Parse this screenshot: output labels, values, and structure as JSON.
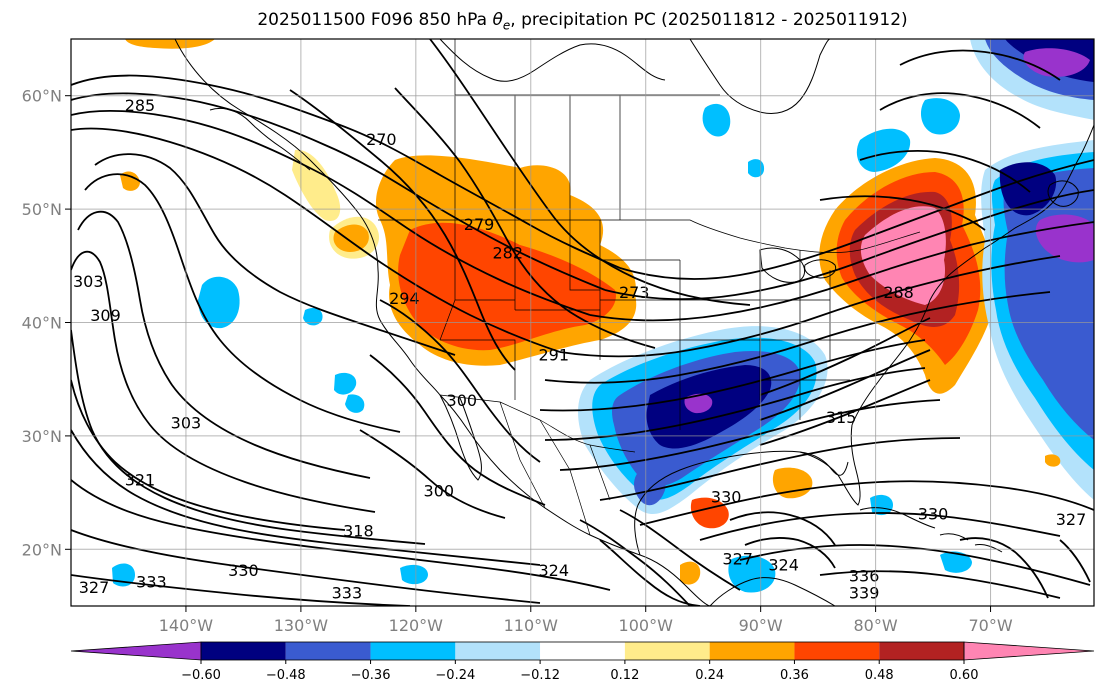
{
  "title": {
    "prefix": "2025011500 F096 850 hPa ",
    "symbol": "θ",
    "symbol_sub": "e",
    "suffix": ", precipitation PC (2025011812 - 2025011912)"
  },
  "map": {
    "projection": "PlateCarree",
    "extent": {
      "lon_min": -150,
      "lon_max": -61,
      "lat_min": 15,
      "lat_max": 65
    },
    "lat_ticks": [
      {
        "value": 20,
        "label": "20°N"
      },
      {
        "value": 30,
        "label": "30°N"
      },
      {
        "value": 40,
        "label": "40°N"
      },
      {
        "value": 50,
        "label": "50°N"
      },
      {
        "value": 60,
        "label": "60°N"
      }
    ],
    "lon_ticks": [
      {
        "value": -140,
        "label": "140°W"
      },
      {
        "value": -130,
        "label": "130°W"
      },
      {
        "value": -120,
        "label": "120°W"
      },
      {
        "value": -110,
        "label": "110°W"
      },
      {
        "value": -100,
        "label": "100°W"
      },
      {
        "value": -90,
        "label": "90°W"
      },
      {
        "value": -80,
        "label": "80°W"
      },
      {
        "value": -70,
        "label": "70°W"
      }
    ],
    "grid": true,
    "contour_labels": [
      {
        "text": "285",
        "lon": -144,
        "lat": 59
      },
      {
        "text": "270",
        "lon": -123,
        "lat": 56
      },
      {
        "text": "279",
        "lon": -114.5,
        "lat": 48.5
      },
      {
        "text": "282",
        "lon": -112,
        "lat": 46
      },
      {
        "text": "294",
        "lon": -121,
        "lat": 42
      },
      {
        "text": "273",
        "lon": -101,
        "lat": 42.5
      },
      {
        "text": "291",
        "lon": -108,
        "lat": 37
      },
      {
        "text": "300",
        "lon": -116,
        "lat": 33
      },
      {
        "text": "303",
        "lon": -140,
        "lat": 31
      },
      {
        "text": "303",
        "lon": -148.5,
        "lat": 43.5
      },
      {
        "text": "309",
        "lon": -147,
        "lat": 40.5
      },
      {
        "text": "321",
        "lon": -144,
        "lat": 26
      },
      {
        "text": "300",
        "lon": -118,
        "lat": 25
      },
      {
        "text": "318",
        "lon": -125,
        "lat": 21.5
      },
      {
        "text": "324",
        "lon": -108,
        "lat": 18
      },
      {
        "text": "330",
        "lon": -135,
        "lat": 18
      },
      {
        "text": "333",
        "lon": -143,
        "lat": 17
      },
      {
        "text": "333",
        "lon": -126,
        "lat": 16
      },
      {
        "text": "327",
        "lon": -148,
        "lat": 16.5
      },
      {
        "text": "330",
        "lon": -93,
        "lat": 24.5
      },
      {
        "text": "330",
        "lon": -75,
        "lat": 23
      },
      {
        "text": "327",
        "lon": -63,
        "lat": 22.5
      },
      {
        "text": "336",
        "lon": -81,
        "lat": 17.5
      },
      {
        "text": "339",
        "lon": -81,
        "lat": 16
      },
      {
        "text": "324",
        "lon": -88,
        "lat": 18.5
      },
      {
        "text": "327",
        "lon": -92,
        "lat": 19
      },
      {
        "text": "315",
        "lon": -83,
        "lat": 31.5
      },
      {
        "text": "288",
        "lon": -78,
        "lat": 42.5
      }
    ]
  },
  "colorbar": {
    "levels": [
      -0.6,
      -0.48,
      -0.36,
      -0.24,
      -0.12,
      0.12,
      0.24,
      0.36,
      0.48,
      0.6
    ],
    "labels": [
      "−0.60",
      "−0.48",
      "−0.36",
      "−0.24",
      "−0.12",
      "0.12",
      "0.24",
      "0.36",
      "0.48",
      "0.60"
    ],
    "colors": [
      "#9933cc",
      "#000080",
      "#3a5bd0",
      "#00bfff",
      "#b3e2fb",
      "#ffffff",
      "#ffec8b",
      "#ffa500",
      "#ff4500",
      "#b22222",
      "#ff85b3"
    ],
    "extend": "both"
  },
  "fill_colors": {
    "purple": "#9933cc",
    "navy": "#000080",
    "blue": "#3a5bd0",
    "sky": "#00bfff",
    "pale_blue": "#b3e2fb",
    "yellow": "#ffec8b",
    "orange": "#ffa500",
    "red_orange": "#ff4500",
    "dark_red": "#b22222",
    "pink": "#ff85b3"
  }
}
